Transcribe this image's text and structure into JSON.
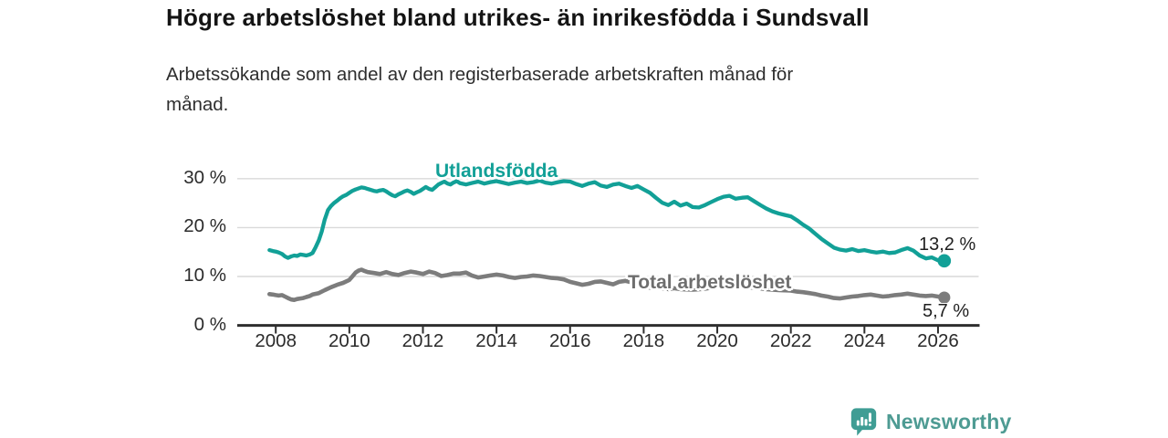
{
  "header": {
    "title": "Högre arbetslöshet bland utrikes- än inrikesfödda i Sundsvall",
    "subtitle_line1": "Arbetssökande som andel av den registerbaserade arbetskraften månad för",
    "subtitle_line2": "månad."
  },
  "chart_data": {
    "type": "line",
    "title": "Högre arbetslöshet bland utrikes- än inrikesfödda i Sundsvall",
    "subtitle": "Arbetssökande som andel av den registerbaserade arbetskraften månad för månad.",
    "xlabel": "",
    "ylabel": "",
    "x_axis": {
      "tick_values": [
        2008,
        2010,
        2012,
        2014,
        2016,
        2018,
        2020,
        2022,
        2024,
        2026
      ],
      "range": [
        2007.0,
        2027.2
      ]
    },
    "y_axis": {
      "tick_values": [
        0,
        10,
        20,
        30
      ],
      "tick_labels": [
        "0 %",
        "10 %",
        "20 %",
        "30 %"
      ],
      "range": [
        0,
        30
      ],
      "unit": "%"
    },
    "grid": true,
    "legend_position": "inline-labels",
    "series": [
      {
        "name": "Utlandsfödda",
        "color": "#12A097",
        "label_color": "#12A097",
        "end_label": "13,2 %",
        "end_value": 13.2,
        "points": [
          [
            2007.83,
            15.4
          ],
          [
            2007.92,
            15.2
          ],
          [
            2008.0,
            15.1
          ],
          [
            2008.08,
            14.9
          ],
          [
            2008.17,
            14.6
          ],
          [
            2008.25,
            14.1
          ],
          [
            2008.33,
            13.8
          ],
          [
            2008.42,
            14.1
          ],
          [
            2008.5,
            14.3
          ],
          [
            2008.58,
            14.2
          ],
          [
            2008.67,
            14.5
          ],
          [
            2008.75,
            14.4
          ],
          [
            2008.83,
            14.3
          ],
          [
            2008.92,
            14.5
          ],
          [
            2009.0,
            14.8
          ],
          [
            2009.08,
            15.9
          ],
          [
            2009.17,
            17.4
          ],
          [
            2009.25,
            19.2
          ],
          [
            2009.33,
            21.6
          ],
          [
            2009.42,
            23.6
          ],
          [
            2009.5,
            24.4
          ],
          [
            2009.58,
            25.0
          ],
          [
            2009.67,
            25.5
          ],
          [
            2009.75,
            26.0
          ],
          [
            2009.83,
            26.4
          ],
          [
            2009.92,
            26.7
          ],
          [
            2010.0,
            27.1
          ],
          [
            2010.08,
            27.5
          ],
          [
            2010.17,
            27.8
          ],
          [
            2010.25,
            28.0
          ],
          [
            2010.33,
            28.2
          ],
          [
            2010.42,
            28.1
          ],
          [
            2010.5,
            27.9
          ],
          [
            2010.58,
            27.7
          ],
          [
            2010.67,
            27.5
          ],
          [
            2010.75,
            27.4
          ],
          [
            2010.83,
            27.6
          ],
          [
            2010.92,
            27.7
          ],
          [
            2011.0,
            27.4
          ],
          [
            2011.08,
            27.0
          ],
          [
            2011.17,
            26.6
          ],
          [
            2011.25,
            26.4
          ],
          [
            2011.33,
            26.8
          ],
          [
            2011.42,
            27.1
          ],
          [
            2011.5,
            27.4
          ],
          [
            2011.58,
            27.6
          ],
          [
            2011.67,
            27.3
          ],
          [
            2011.75,
            26.9
          ],
          [
            2011.83,
            27.2
          ],
          [
            2011.92,
            27.5
          ],
          [
            2012.0,
            27.9
          ],
          [
            2012.08,
            28.3
          ],
          [
            2012.17,
            27.9
          ],
          [
            2012.25,
            27.7
          ],
          [
            2012.33,
            28.2
          ],
          [
            2012.42,
            28.8
          ],
          [
            2012.5,
            29.1
          ],
          [
            2012.58,
            29.4
          ],
          [
            2012.67,
            29.0
          ],
          [
            2012.75,
            28.8
          ],
          [
            2012.83,
            29.2
          ],
          [
            2012.92,
            29.5
          ],
          [
            2013.0,
            29.1
          ],
          [
            2013.17,
            28.8
          ],
          [
            2013.33,
            29.1
          ],
          [
            2013.5,
            29.4
          ],
          [
            2013.67,
            29.0
          ],
          [
            2013.83,
            29.3
          ],
          [
            2014.0,
            29.5
          ],
          [
            2014.17,
            29.2
          ],
          [
            2014.33,
            28.9
          ],
          [
            2014.5,
            29.2
          ],
          [
            2014.67,
            29.4
          ],
          [
            2014.83,
            29.1
          ],
          [
            2015.0,
            29.3
          ],
          [
            2015.17,
            29.6
          ],
          [
            2015.33,
            29.2
          ],
          [
            2015.5,
            29.0
          ],
          [
            2015.67,
            29.3
          ],
          [
            2015.83,
            29.5
          ],
          [
            2016.0,
            29.4
          ],
          [
            2016.17,
            28.9
          ],
          [
            2016.33,
            28.5
          ],
          [
            2016.5,
            29.0
          ],
          [
            2016.67,
            29.3
          ],
          [
            2016.83,
            28.6
          ],
          [
            2017.0,
            28.3
          ],
          [
            2017.17,
            28.8
          ],
          [
            2017.33,
            29.0
          ],
          [
            2017.5,
            28.5
          ],
          [
            2017.67,
            28.1
          ],
          [
            2017.83,
            28.5
          ],
          [
            2018.0,
            27.8
          ],
          [
            2018.17,
            27.1
          ],
          [
            2018.33,
            26.1
          ],
          [
            2018.5,
            25.1
          ],
          [
            2018.67,
            24.6
          ],
          [
            2018.83,
            25.3
          ],
          [
            2019.0,
            24.5
          ],
          [
            2019.17,
            24.9
          ],
          [
            2019.33,
            24.2
          ],
          [
            2019.5,
            24.1
          ],
          [
            2019.67,
            24.6
          ],
          [
            2019.83,
            25.2
          ],
          [
            2020.0,
            25.8
          ],
          [
            2020.17,
            26.3
          ],
          [
            2020.33,
            26.5
          ],
          [
            2020.5,
            25.9
          ],
          [
            2020.67,
            26.1
          ],
          [
            2020.83,
            26.2
          ],
          [
            2021.0,
            25.4
          ],
          [
            2021.17,
            24.6
          ],
          [
            2021.33,
            23.9
          ],
          [
            2021.5,
            23.3
          ],
          [
            2021.67,
            22.9
          ],
          [
            2021.83,
            22.6
          ],
          [
            2022.0,
            22.3
          ],
          [
            2022.17,
            21.5
          ],
          [
            2022.33,
            20.6
          ],
          [
            2022.5,
            19.8
          ],
          [
            2022.67,
            18.7
          ],
          [
            2022.83,
            17.7
          ],
          [
            2023.0,
            16.8
          ],
          [
            2023.17,
            15.9
          ],
          [
            2023.33,
            15.5
          ],
          [
            2023.5,
            15.3
          ],
          [
            2023.67,
            15.6
          ],
          [
            2023.83,
            15.2
          ],
          [
            2024.0,
            15.4
          ],
          [
            2024.17,
            15.1
          ],
          [
            2024.33,
            14.9
          ],
          [
            2024.5,
            15.1
          ],
          [
            2024.67,
            14.8
          ],
          [
            2024.83,
            14.9
          ],
          [
            2025.0,
            15.4
          ],
          [
            2025.17,
            15.8
          ],
          [
            2025.33,
            15.3
          ],
          [
            2025.5,
            14.3
          ],
          [
            2025.67,
            13.7
          ],
          [
            2025.83,
            13.9
          ],
          [
            2026.0,
            13.3
          ],
          [
            2026.08,
            13.6
          ],
          [
            2026.17,
            13.2
          ]
        ]
      },
      {
        "name": "Total arbetslöshet",
        "color": "#7C7C7C",
        "label_color": "#6E6E6E",
        "end_label": "5,7 %",
        "end_value": 5.7,
        "points": [
          [
            2007.83,
            6.4
          ],
          [
            2007.92,
            6.3
          ],
          [
            2008.0,
            6.2
          ],
          [
            2008.08,
            6.1
          ],
          [
            2008.17,
            6.2
          ],
          [
            2008.25,
            5.9
          ],
          [
            2008.33,
            5.6
          ],
          [
            2008.42,
            5.3
          ],
          [
            2008.5,
            5.2
          ],
          [
            2008.58,
            5.4
          ],
          [
            2008.67,
            5.5
          ],
          [
            2008.75,
            5.6
          ],
          [
            2008.83,
            5.8
          ],
          [
            2008.92,
            6.0
          ],
          [
            2009.0,
            6.3
          ],
          [
            2009.17,
            6.6
          ],
          [
            2009.33,
            7.2
          ],
          [
            2009.5,
            7.8
          ],
          [
            2009.67,
            8.3
          ],
          [
            2009.83,
            8.7
          ],
          [
            2010.0,
            9.3
          ],
          [
            2010.08,
            10.0
          ],
          [
            2010.17,
            10.8
          ],
          [
            2010.25,
            11.2
          ],
          [
            2010.33,
            11.4
          ],
          [
            2010.42,
            11.1
          ],
          [
            2010.5,
            10.9
          ],
          [
            2010.67,
            10.7
          ],
          [
            2010.83,
            10.5
          ],
          [
            2011.0,
            10.9
          ],
          [
            2011.17,
            10.5
          ],
          [
            2011.33,
            10.3
          ],
          [
            2011.5,
            10.7
          ],
          [
            2011.67,
            11.0
          ],
          [
            2011.83,
            10.8
          ],
          [
            2012.0,
            10.5
          ],
          [
            2012.17,
            11.0
          ],
          [
            2012.33,
            10.7
          ],
          [
            2012.5,
            10.1
          ],
          [
            2012.67,
            10.3
          ],
          [
            2012.83,
            10.6
          ],
          [
            2013.0,
            10.6
          ],
          [
            2013.17,
            10.8
          ],
          [
            2013.33,
            10.2
          ],
          [
            2013.5,
            9.8
          ],
          [
            2013.67,
            10.0
          ],
          [
            2013.83,
            10.2
          ],
          [
            2014.0,
            10.4
          ],
          [
            2014.17,
            10.2
          ],
          [
            2014.33,
            9.9
          ],
          [
            2014.5,
            9.7
          ],
          [
            2014.67,
            9.9
          ],
          [
            2014.83,
            10.0
          ],
          [
            2015.0,
            10.2
          ],
          [
            2015.17,
            10.1
          ],
          [
            2015.33,
            9.9
          ],
          [
            2015.5,
            9.7
          ],
          [
            2015.67,
            9.6
          ],
          [
            2015.83,
            9.4
          ],
          [
            2016.0,
            8.9
          ],
          [
            2016.17,
            8.6
          ],
          [
            2016.33,
            8.3
          ],
          [
            2016.5,
            8.5
          ],
          [
            2016.67,
            8.9
          ],
          [
            2016.83,
            9.0
          ],
          [
            2017.0,
            8.7
          ],
          [
            2017.17,
            8.4
          ],
          [
            2017.33,
            8.9
          ],
          [
            2017.5,
            9.1
          ],
          [
            2017.67,
            8.8
          ],
          [
            2017.83,
            8.4
          ],
          [
            2018.0,
            8.0
          ],
          [
            2018.17,
            7.7
          ],
          [
            2018.33,
            7.9
          ],
          [
            2018.5,
            7.6
          ],
          [
            2018.67,
            7.4
          ],
          [
            2018.83,
            7.6
          ],
          [
            2019.0,
            7.4
          ],
          [
            2019.33,
            7.3
          ],
          [
            2019.67,
            7.5
          ],
          [
            2020.0,
            7.9
          ],
          [
            2020.33,
            8.1
          ],
          [
            2020.67,
            7.9
          ],
          [
            2021.0,
            7.7
          ],
          [
            2021.33,
            7.4
          ],
          [
            2021.67,
            7.2
          ],
          [
            2022.0,
            7.1
          ],
          [
            2022.17,
            6.9
          ],
          [
            2022.33,
            6.8
          ],
          [
            2022.5,
            6.6
          ],
          [
            2022.67,
            6.4
          ],
          [
            2022.83,
            6.1
          ],
          [
            2023.0,
            5.9
          ],
          [
            2023.17,
            5.6
          ],
          [
            2023.33,
            5.5
          ],
          [
            2023.5,
            5.7
          ],
          [
            2023.67,
            5.9
          ],
          [
            2023.83,
            6.0
          ],
          [
            2024.0,
            6.2
          ],
          [
            2024.17,
            6.3
          ],
          [
            2024.33,
            6.1
          ],
          [
            2024.5,
            5.9
          ],
          [
            2024.67,
            6.0
          ],
          [
            2024.83,
            6.2
          ],
          [
            2025.0,
            6.3
          ],
          [
            2025.17,
            6.5
          ],
          [
            2025.33,
            6.3
          ],
          [
            2025.5,
            6.1
          ],
          [
            2025.67,
            6.0
          ],
          [
            2025.83,
            6.1
          ],
          [
            2026.0,
            5.9
          ],
          [
            2026.17,
            5.7
          ]
        ]
      }
    ]
  },
  "branding": {
    "logo_text": "Newsworthy",
    "accent_color": "#4E9B93",
    "icon_color": "#3F9D94",
    "icon_name": "newsworthy-chart-bubble-icon"
  },
  "colors": {
    "gridline": "#d9d9d9",
    "axis": "#2e2e2e",
    "value_label": "#1f1f1f"
  }
}
